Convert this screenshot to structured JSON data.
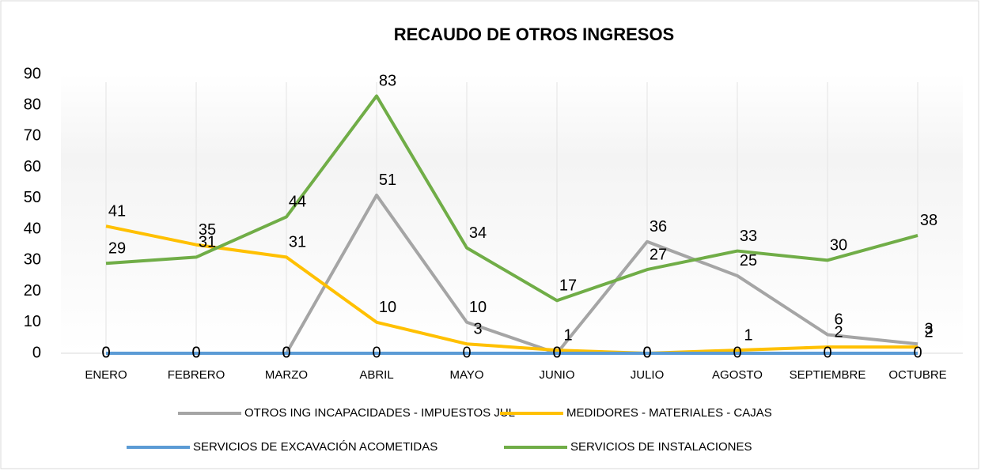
{
  "chart_data": {
    "type": "line",
    "title": "RECAUDO DE OTROS INGRESOS",
    "categories": [
      "ENERO",
      "FEBRERO",
      "MARZO",
      "ABRIL",
      "MAYO",
      "JUNIO",
      "JULIO",
      "AGOSTO",
      "SEPTIEMBRE",
      "OCTUBRE"
    ],
    "series": [
      {
        "name": "OTROS ING INCAPACIDADES  - IMPUESTOS JUL",
        "color": "#a5a5a5",
        "values": [
          0,
          0,
          0,
          51,
          10,
          0,
          36,
          25,
          6,
          3
        ]
      },
      {
        "name": "MEDIDORES - MATERIALES - CAJAS",
        "color": "#ffc000",
        "values": [
          41,
          35,
          31,
          10,
          3,
          1,
          0,
          1,
          2,
          2
        ]
      },
      {
        "name": "SERVICIOS DE EXCAVACIÓN ACOMETIDAS",
        "color": "#5b9bd5",
        "values": [
          0,
          0,
          0,
          0,
          0,
          0,
          0,
          0,
          0,
          0
        ]
      },
      {
        "name": "SERVICIOS DE INSTALACIONES",
        "color": "#70ad47",
        "values": [
          29,
          31,
          44,
          83,
          34,
          17,
          27,
          33,
          30,
          38
        ]
      }
    ],
    "ylim": [
      0,
      90
    ],
    "yticks": [
      0,
      10,
      20,
      30,
      40,
      50,
      60,
      70,
      80,
      90
    ],
    "grid": true,
    "legend": "bottom"
  }
}
